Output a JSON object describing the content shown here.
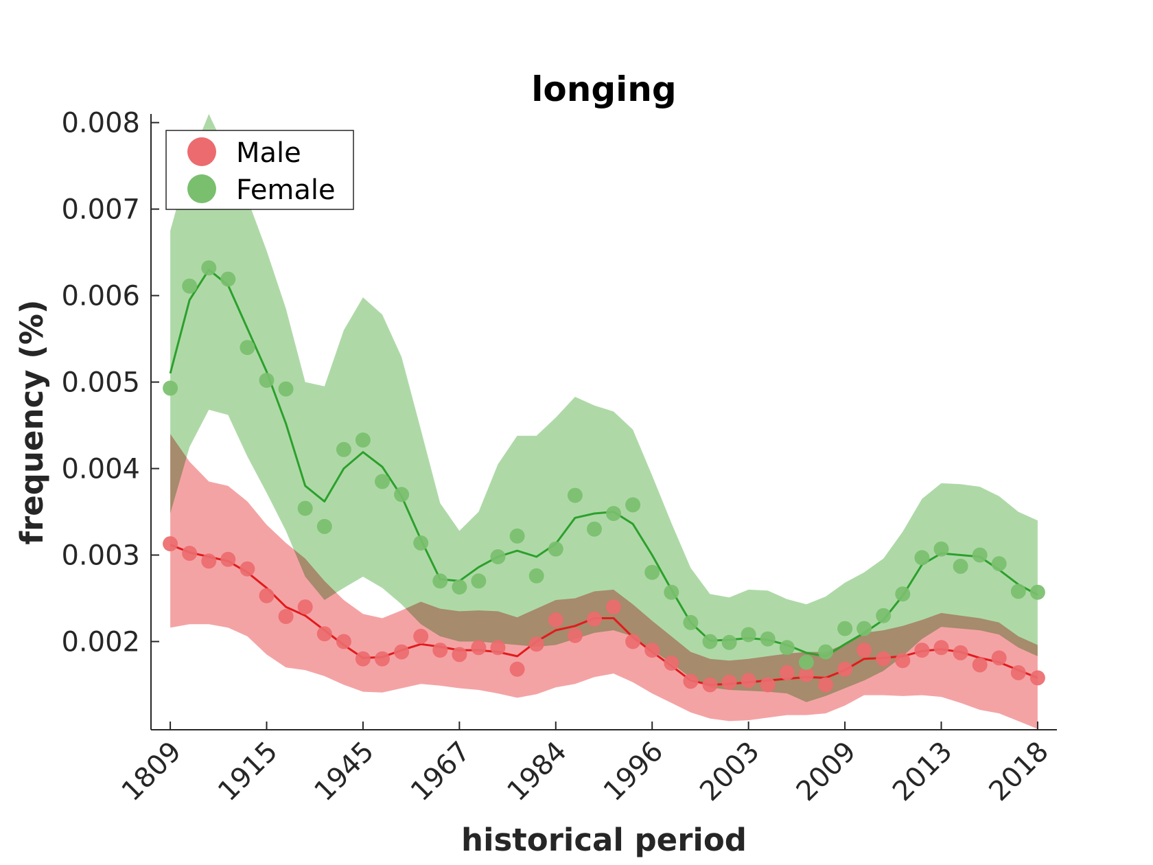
{
  "colors": {
    "male": "#e31a1c",
    "male_band": "#f4a3a5",
    "male_marker": "#ec6b6e",
    "female": "#2ca02c",
    "female_band": "#aed9a7",
    "female_marker": "#7abf6e",
    "overlap": "#a89a68",
    "axis": "#262626"
  },
  "chart_data": {
    "type": "line",
    "title": "longing",
    "xlabel": "historical period",
    "ylabel": "frequency (%)",
    "x_tick_labels": [
      "1809",
      "1915",
      "1945",
      "1967",
      "1984",
      "1996",
      "2003",
      "2009",
      "2013",
      "2018"
    ],
    "x_tick_positions": [
      1,
      6,
      11,
      16,
      21,
      26,
      31,
      36,
      41,
      46
    ],
    "x_range": [
      0,
      47
    ],
    "ylim": [
      0.00098,
      0.0081
    ],
    "y_ticks": [
      0.002,
      0.003,
      0.004,
      0.005,
      0.006,
      0.007,
      0.008
    ],
    "y_tick_labels": [
      "0.002",
      "0.003",
      "0.004",
      "0.005",
      "0.006",
      "0.007",
      "0.008"
    ],
    "legend": {
      "position": "top-left",
      "entries": [
        "Male",
        "Female"
      ]
    },
    "series": [
      {
        "name": "Male",
        "points": [
          0.00313,
          0.00302,
          0.00293,
          0.00295,
          0.00284,
          0.00253,
          0.00229,
          0.0024,
          0.00209,
          0.002,
          0.0018,
          0.0018,
          0.00188,
          0.00206,
          0.0019,
          0.00185,
          0.00193,
          0.00193,
          0.00168,
          0.00197,
          0.00225,
          0.00207,
          0.00226,
          0.0024,
          0.002,
          0.0019,
          0.00175,
          0.00154,
          0.0015,
          0.00153,
          0.00155,
          0.0015,
          0.00164,
          0.00162,
          0.0015,
          0.00168,
          0.0019,
          0.0018,
          0.00178,
          0.0019,
          0.00193,
          0.00187,
          0.00173,
          0.00181,
          0.00164,
          0.00158
        ],
        "smooth": [
          0.00312,
          0.00303,
          0.00298,
          0.00293,
          0.0028,
          0.00262,
          0.0024,
          0.0023,
          0.00213,
          0.00196,
          0.00181,
          0.00182,
          0.0019,
          0.00197,
          0.00194,
          0.0019,
          0.0019,
          0.00188,
          0.00183,
          0.002,
          0.00213,
          0.00218,
          0.00227,
          0.00227,
          0.00205,
          0.00188,
          0.00172,
          0.00155,
          0.0015,
          0.00151,
          0.00153,
          0.00155,
          0.00157,
          0.00159,
          0.00158,
          0.00167,
          0.0018,
          0.00181,
          0.00183,
          0.00189,
          0.00191,
          0.00188,
          0.00181,
          0.00176,
          0.00167,
          0.00158
        ],
        "upper": [
          0.0044,
          0.00408,
          0.00385,
          0.0038,
          0.00362,
          0.00335,
          0.00314,
          0.00296,
          0.0027,
          0.00248,
          0.00232,
          0.00227,
          0.00236,
          0.00246,
          0.00238,
          0.00235,
          0.00236,
          0.00235,
          0.00228,
          0.00238,
          0.00248,
          0.0025,
          0.00258,
          0.0026,
          0.00243,
          0.00224,
          0.00206,
          0.00188,
          0.0018,
          0.00178,
          0.0018,
          0.00183,
          0.00186,
          0.00188,
          0.00188,
          0.00197,
          0.0021,
          0.00213,
          0.00218,
          0.00225,
          0.00233,
          0.0023,
          0.00227,
          0.00222,
          0.00206,
          0.00196
        ],
        "lower": [
          0.00216,
          0.0022,
          0.0022,
          0.00216,
          0.00206,
          0.00185,
          0.0017,
          0.00167,
          0.0016,
          0.0015,
          0.00142,
          0.00141,
          0.00146,
          0.00151,
          0.00149,
          0.00146,
          0.00144,
          0.0014,
          0.00135,
          0.00139,
          0.00147,
          0.00151,
          0.00159,
          0.00163,
          0.00153,
          0.0014,
          0.00129,
          0.00118,
          0.00111,
          0.00108,
          0.00109,
          0.00112,
          0.00115,
          0.00115,
          0.00117,
          0.00126,
          0.00138,
          0.00138,
          0.00137,
          0.00138,
          0.00136,
          0.00129,
          0.00121,
          0.00117,
          0.00108,
          0.00099
        ]
      },
      {
        "name": "Female",
        "points": [
          0.00493,
          0.00611,
          0.00632,
          0.00619,
          0.0054,
          0.00502,
          0.00492,
          0.00354,
          0.00333,
          0.00422,
          0.00433,
          0.00385,
          0.0037,
          0.00314,
          0.0027,
          0.00263,
          0.0027,
          0.00298,
          0.00322,
          0.00276,
          0.00307,
          0.00369,
          0.0033,
          0.00348,
          0.00358,
          0.0028,
          0.00257,
          0.00222,
          0.002,
          0.00199,
          0.00208,
          0.00203,
          0.00193,
          0.00176,
          0.00188,
          0.00215,
          0.00215,
          0.0023,
          0.00255,
          0.00297,
          0.00307,
          0.00287,
          0.003,
          0.0029,
          0.00258,
          0.00257
        ],
        "smooth": [
          0.0051,
          0.00595,
          0.0063,
          0.00612,
          0.00562,
          0.00512,
          0.00452,
          0.0038,
          0.00362,
          0.004,
          0.00419,
          0.00402,
          0.00368,
          0.00318,
          0.00272,
          0.0027,
          0.00286,
          0.00298,
          0.00305,
          0.00298,
          0.00313,
          0.00343,
          0.00348,
          0.0035,
          0.00336,
          0.003,
          0.0026,
          0.00222,
          0.00201,
          0.00202,
          0.00204,
          0.00202,
          0.00196,
          0.00187,
          0.00183,
          0.00197,
          0.0021,
          0.00225,
          0.00253,
          0.00289,
          0.00302,
          0.003,
          0.00298,
          0.00283,
          0.00266,
          0.00254
        ],
        "upper": [
          0.00675,
          0.00755,
          0.0081,
          0.00763,
          0.00712,
          0.00652,
          0.00585,
          0.005,
          0.00495,
          0.0056,
          0.00598,
          0.00578,
          0.00529,
          0.00445,
          0.0036,
          0.00328,
          0.0035,
          0.00405,
          0.00438,
          0.00438,
          0.00459,
          0.00483,
          0.00473,
          0.00466,
          0.00445,
          0.00392,
          0.00337,
          0.00285,
          0.00255,
          0.00251,
          0.0026,
          0.00259,
          0.00249,
          0.00243,
          0.00252,
          0.00268,
          0.0028,
          0.00296,
          0.00327,
          0.00365,
          0.00383,
          0.00382,
          0.00379,
          0.00368,
          0.0035,
          0.0034
        ],
        "lower": [
          0.00348,
          0.00425,
          0.00468,
          0.00462,
          0.00414,
          0.00372,
          0.00328,
          0.00275,
          0.00248,
          0.00262,
          0.00275,
          0.00262,
          0.00243,
          0.0022,
          0.00206,
          0.002,
          0.002,
          0.00198,
          0.00196,
          0.00194,
          0.00196,
          0.00203,
          0.0021,
          0.00213,
          0.00206,
          0.0019,
          0.00175,
          0.00158,
          0.00147,
          0.00144,
          0.00143,
          0.00142,
          0.0014,
          0.0013,
          0.00137,
          0.00146,
          0.00155,
          0.00166,
          0.00183,
          0.00203,
          0.00217,
          0.00215,
          0.00213,
          0.00208,
          0.00193,
          0.00183
        ]
      }
    ]
  }
}
